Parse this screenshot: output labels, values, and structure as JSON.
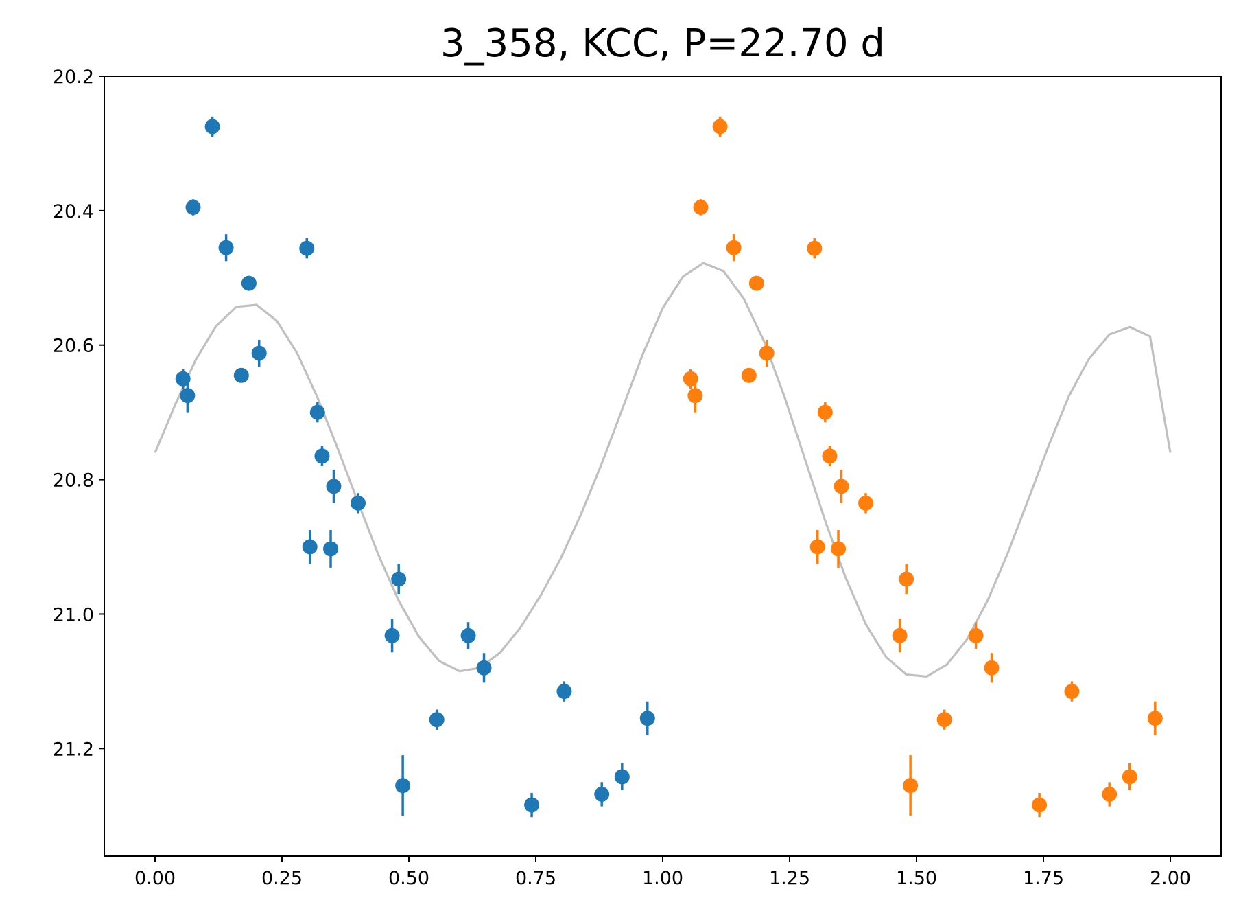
{
  "chart_data": {
    "type": "scatter",
    "title": "3_358, KCC, P=22.70 d",
    "xlabel": "",
    "ylabel": "",
    "xlim": [
      -0.1,
      2.1
    ],
    "ylim": [
      21.36,
      20.2
    ],
    "y_inverted": true,
    "grid": false,
    "x_ticks": [
      "0.00",
      "0.25",
      "0.50",
      "0.75",
      "1.00",
      "1.25",
      "1.50",
      "1.75",
      "2.00"
    ],
    "y_ticks": [
      "20.2",
      "20.4",
      "20.6",
      "20.8",
      "21.0",
      "21.2"
    ],
    "colors": {
      "series1": "#1f77b4",
      "series2": "#ff7f0e",
      "model": "#c0c0c0"
    },
    "series": [
      {
        "kind": "errorbar",
        "color": "#1f77b4",
        "points": [
          {
            "x": 0.055,
            "y": 20.65,
            "err": 0.015
          },
          {
            "x": 0.064,
            "y": 20.675,
            "err": 0.025
          },
          {
            "x": 0.075,
            "y": 20.395,
            "err": 0.012
          },
          {
            "x": 0.113,
            "y": 20.275,
            "err": 0.015
          },
          {
            "x": 0.14,
            "y": 20.455,
            "err": 0.02
          },
          {
            "x": 0.17,
            "y": 20.645,
            "err": 0.01
          },
          {
            "x": 0.185,
            "y": 20.508,
            "err": 0.01
          },
          {
            "x": 0.205,
            "y": 20.612,
            "err": 0.02
          },
          {
            "x": 0.299,
            "y": 20.456,
            "err": 0.015
          },
          {
            "x": 0.305,
            "y": 20.9,
            "err": 0.025
          },
          {
            "x": 0.32,
            "y": 20.7,
            "err": 0.015
          },
          {
            "x": 0.329,
            "y": 20.765,
            "err": 0.015
          },
          {
            "x": 0.346,
            "y": 20.903,
            "err": 0.028
          },
          {
            "x": 0.352,
            "y": 20.81,
            "err": 0.025
          },
          {
            "x": 0.4,
            "y": 20.835,
            "err": 0.015
          },
          {
            "x": 0.467,
            "y": 21.032,
            "err": 0.025
          },
          {
            "x": 0.48,
            "y": 20.948,
            "err": 0.022
          },
          {
            "x": 0.488,
            "y": 21.255,
            "err": 0.045
          },
          {
            "x": 0.555,
            "y": 21.157,
            "err": 0.015
          },
          {
            "x": 0.617,
            "y": 21.032,
            "err": 0.02
          },
          {
            "x": 0.648,
            "y": 21.08,
            "err": 0.022
          },
          {
            "x": 0.742,
            "y": 21.284,
            "err": 0.018
          },
          {
            "x": 0.806,
            "y": 21.115,
            "err": 0.015
          },
          {
            "x": 0.88,
            "y": 21.268,
            "err": 0.018
          },
          {
            "x": 0.92,
            "y": 21.242,
            "err": 0.02
          },
          {
            "x": 0.97,
            "y": 21.155,
            "err": 0.025
          }
        ]
      },
      {
        "kind": "errorbar",
        "color": "#ff7f0e",
        "points": [
          {
            "x": 1.055,
            "y": 20.65,
            "err": 0.015
          },
          {
            "x": 1.064,
            "y": 20.675,
            "err": 0.025
          },
          {
            "x": 1.075,
            "y": 20.395,
            "err": 0.012
          },
          {
            "x": 1.113,
            "y": 20.275,
            "err": 0.015
          },
          {
            "x": 1.14,
            "y": 20.455,
            "err": 0.02
          },
          {
            "x": 1.17,
            "y": 20.645,
            "err": 0.01
          },
          {
            "x": 1.185,
            "y": 20.508,
            "err": 0.01
          },
          {
            "x": 1.205,
            "y": 20.612,
            "err": 0.02
          },
          {
            "x": 1.299,
            "y": 20.456,
            "err": 0.015
          },
          {
            "x": 1.305,
            "y": 20.9,
            "err": 0.025
          },
          {
            "x": 1.32,
            "y": 20.7,
            "err": 0.015
          },
          {
            "x": 1.329,
            "y": 20.765,
            "err": 0.015
          },
          {
            "x": 1.346,
            "y": 20.903,
            "err": 0.028
          },
          {
            "x": 1.352,
            "y": 20.81,
            "err": 0.025
          },
          {
            "x": 1.4,
            "y": 20.835,
            "err": 0.015
          },
          {
            "x": 1.467,
            "y": 21.032,
            "err": 0.025
          },
          {
            "x": 1.48,
            "y": 20.948,
            "err": 0.022
          },
          {
            "x": 1.488,
            "y": 21.255,
            "err": 0.045
          },
          {
            "x": 1.555,
            "y": 21.157,
            "err": 0.015
          },
          {
            "x": 1.617,
            "y": 21.032,
            "err": 0.02
          },
          {
            "x": 1.648,
            "y": 21.08,
            "err": 0.022
          },
          {
            "x": 1.742,
            "y": 21.284,
            "err": 0.018
          },
          {
            "x": 1.806,
            "y": 21.115,
            "err": 0.015
          },
          {
            "x": 1.88,
            "y": 21.268,
            "err": 0.018
          },
          {
            "x": 1.92,
            "y": 21.242,
            "err": 0.02
          },
          {
            "x": 1.97,
            "y": 21.155,
            "err": 0.025
          }
        ]
      },
      {
        "kind": "line",
        "color": "#c0c0c0",
        "x": [
          0.0,
          0.04,
          0.08,
          0.12,
          0.16,
          0.2,
          0.24,
          0.28,
          0.32,
          0.36,
          0.4,
          0.44,
          0.48,
          0.52,
          0.56,
          0.6,
          0.64,
          0.68,
          0.72,
          0.76,
          0.8,
          0.84,
          0.88,
          0.92,
          0.96,
          1.0,
          1.04,
          1.08,
          1.12,
          1.16,
          1.2,
          1.24,
          1.28,
          1.32,
          1.36,
          1.4,
          1.44,
          1.48,
          1.52,
          1.56,
          1.6,
          1.64,
          1.68,
          1.72,
          1.76,
          1.8,
          1.84,
          1.88,
          1.92,
          1.96,
          2.0
        ],
        "y": [
          20.76,
          20.688,
          20.622,
          20.572,
          20.543,
          20.54,
          20.564,
          20.612,
          20.678,
          20.754,
          20.834,
          20.912,
          20.98,
          21.034,
          21.07,
          21.085,
          21.08,
          21.057,
          21.02,
          20.972,
          20.916,
          20.85,
          20.776,
          20.696,
          20.615,
          20.545,
          20.498,
          20.478,
          20.49,
          20.531,
          20.595,
          20.677,
          20.769,
          20.861,
          20.945,
          21.015,
          21.064,
          21.09,
          21.093,
          21.075,
          21.037,
          20.98,
          20.909,
          20.83,
          20.75,
          20.676,
          20.62,
          20.584,
          20.573,
          20.587,
          20.76
        ]
      }
    ]
  }
}
